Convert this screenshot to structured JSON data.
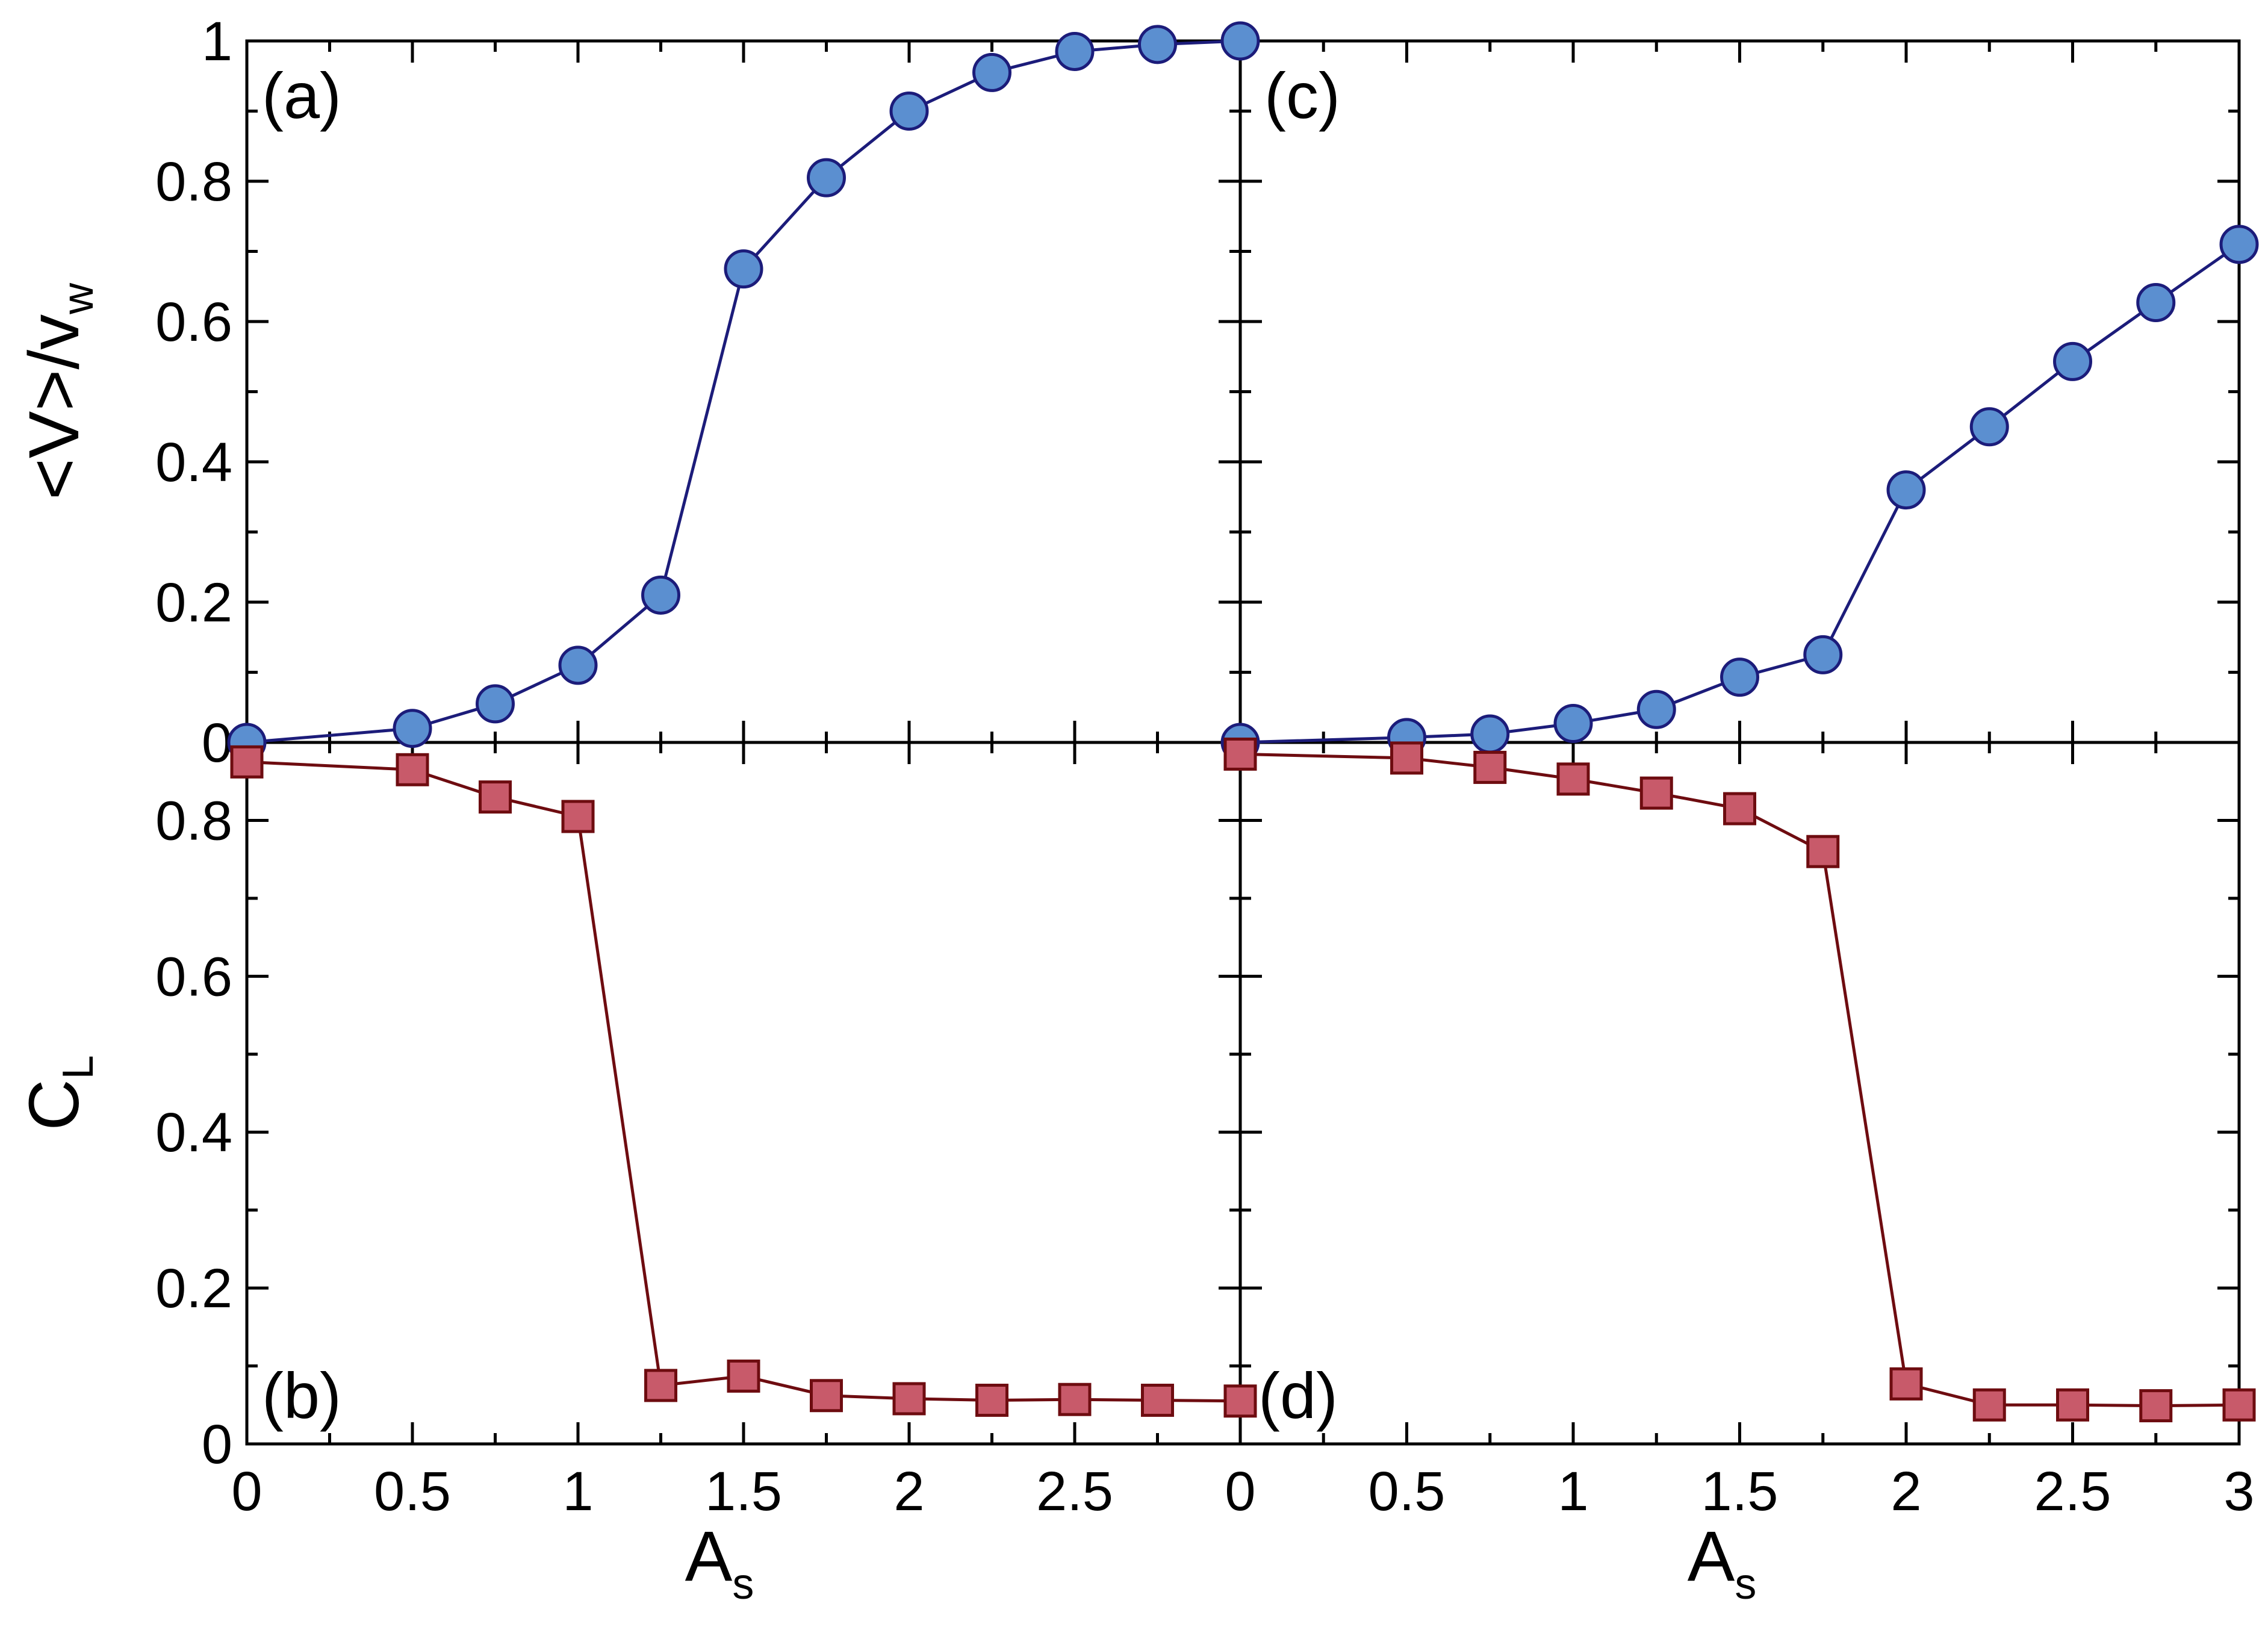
{
  "figure": {
    "colors": {
      "circle_fill": "#5b8fd0",
      "circle_stroke": "#1c1c7a",
      "circle_line": "#1c1c7a",
      "square_fill": "#c85a6a",
      "square_stroke": "#6e0c10",
      "square_line": "#6e0c10",
      "axis": "#000000",
      "background": "#ffffff"
    },
    "y_top_title": {
      "main": "<V>/v",
      "sub": "w"
    },
    "y_bottom_title": {
      "main": "C",
      "sub": "L"
    },
    "x_title_left": {
      "main": "A",
      "sub": "s"
    },
    "x_title_right": {
      "main": "A",
      "sub": "s"
    }
  },
  "chart_data": [
    {
      "id": "a",
      "panel_label": "(a)",
      "type": "line",
      "marker": "circle",
      "ylabel": "<V>/v_w",
      "xlim": [
        0,
        3
      ],
      "ylim": [
        0,
        1
      ],
      "x": [
        0,
        0.5,
        0.75,
        1.0,
        1.25,
        1.5,
        1.75,
        2.0,
        2.25,
        2.5,
        2.75,
        3.0
      ],
      "y": [
        0.0,
        0.02,
        0.055,
        0.11,
        0.21,
        0.675,
        0.805,
        0.9,
        0.955,
        0.985,
        0.995,
        1.0
      ],
      "yticks": [
        0,
        0.2,
        0.4,
        0.6,
        0.8,
        1
      ],
      "ytick_labels": [
        "0",
        "0.2",
        "0.4",
        "0.6",
        "0.8",
        "1"
      ]
    },
    {
      "id": "b",
      "panel_label": "(b)",
      "type": "line",
      "marker": "square",
      "ylabel": "C_L",
      "xlabel": "A_s",
      "xlim": [
        0,
        3
      ],
      "ylim": [
        0,
        0.9
      ],
      "x": [
        0,
        0.5,
        0.75,
        1.0,
        1.25,
        1.5,
        1.75,
        2.0,
        2.25,
        2.5,
        2.75,
        3.0
      ],
      "y": [
        0.875,
        0.865,
        0.83,
        0.805,
        0.075,
        0.087,
        0.062,
        0.058,
        0.056,
        0.057,
        0.056,
        0.055
      ],
      "yticks": [
        0,
        0.2,
        0.4,
        0.6,
        0.8
      ],
      "ytick_labels": [
        "0",
        "0.2",
        "0.4",
        "0.6",
        "0.8"
      ],
      "xticks": [
        0,
        0.5,
        1,
        1.5,
        2,
        2.5
      ],
      "xtick_labels": [
        "0",
        "0.5",
        "1",
        "1.5",
        "2",
        "2.5"
      ]
    },
    {
      "id": "c",
      "panel_label": "(c)",
      "type": "line",
      "marker": "circle",
      "ylabel": "<V>/v_w",
      "xlim": [
        0,
        3
      ],
      "ylim": [
        0,
        1
      ],
      "x": [
        0,
        0.5,
        0.75,
        1.0,
        1.25,
        1.5,
        1.75,
        2.0,
        2.25,
        2.5,
        2.75,
        3.0
      ],
      "y": [
        0.0,
        0.007,
        0.012,
        0.027,
        0.047,
        0.093,
        0.125,
        0.36,
        0.45,
        0.543,
        0.627,
        0.71
      ]
    },
    {
      "id": "d",
      "panel_label": "(d)",
      "type": "line",
      "marker": "square",
      "ylabel": "C_L",
      "xlabel": "A_s",
      "xlim": [
        0,
        3
      ],
      "ylim": [
        0,
        0.9
      ],
      "x": [
        0,
        0.5,
        0.75,
        1.0,
        1.25,
        1.5,
        1.75,
        2.0,
        2.25,
        2.5,
        2.75,
        3.0
      ],
      "y": [
        0.885,
        0.88,
        0.868,
        0.853,
        0.835,
        0.815,
        0.76,
        0.077,
        0.05,
        0.05,
        0.049,
        0.05
      ],
      "xticks": [
        0,
        0.5,
        1,
        1.5,
        2,
        2.5,
        3
      ],
      "xtick_labels": [
        "0",
        "0.5",
        "1",
        "1.5",
        "2",
        "2.5",
        "3"
      ]
    }
  ]
}
